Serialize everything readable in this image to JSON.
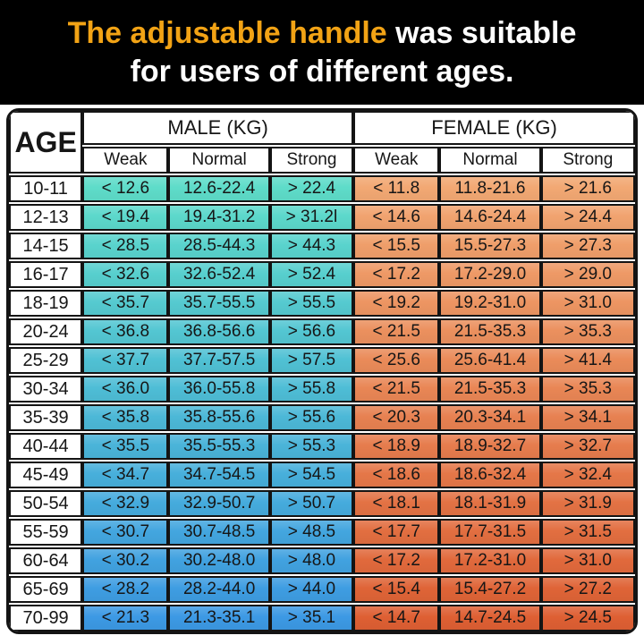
{
  "banner": {
    "highlight": "The adjustable handle",
    "line1_rest": " was suitable",
    "line2": "for users of different ages."
  },
  "chart_data": {
    "type": "table",
    "title": "The adjustable handle was suitable for users of different ages.",
    "column_groups": [
      {
        "label": "MALE (KG)",
        "span": 3
      },
      {
        "label": "FEMALE (KG)",
        "span": 3
      }
    ],
    "columns": [
      "AGE",
      "Weak",
      "Normal",
      "Strong",
      "Weak",
      "Normal",
      "Strong"
    ],
    "rows": [
      [
        "10-11",
        "< 12.6",
        "12.6-22.4",
        "> 22.4",
        "< 11.8",
        "11.8-21.6",
        "> 21.6"
      ],
      [
        "12-13",
        "< 19.4",
        "19.4-31.2",
        "> 31.2l",
        "< 14.6",
        "14.6-24.4",
        "> 24.4"
      ],
      [
        "14-15",
        "< 28.5",
        "28.5-44.3",
        "> 44.3",
        "< 15.5",
        "15.5-27.3",
        "> 27.3"
      ],
      [
        "16-17",
        "< 32.6",
        "32.6-52.4",
        "> 52.4",
        "< 17.2",
        "17.2-29.0",
        "> 29.0"
      ],
      [
        "18-19",
        "< 35.7",
        "35.7-55.5",
        "> 55.5",
        "< 19.2",
        "19.2-31.0",
        "> 31.0"
      ],
      [
        "20-24",
        "< 36.8",
        "36.8-56.6",
        "> 56.6",
        "< 21.5",
        "21.5-35.3",
        "> 35.3"
      ],
      [
        "25-29",
        "< 37.7",
        "37.7-57.5",
        "> 57.5",
        "< 25.6",
        "25.6-41.4",
        "> 41.4"
      ],
      [
        "30-34",
        "< 36.0",
        "36.0-55.8",
        "> 55.8",
        "< 21.5",
        "21.5-35.3",
        "> 35.3"
      ],
      [
        "35-39",
        "< 35.8",
        "35.8-55.6",
        "> 55.6",
        "< 20.3",
        "20.3-34.1",
        "> 34.1"
      ],
      [
        "40-44",
        "< 35.5",
        "35.5-55.3",
        "> 55.3",
        "< 18.9",
        "18.9-32.7",
        "> 32.7"
      ],
      [
        "45-49",
        "< 34.7",
        "34.7-54.5",
        "> 54.5",
        "< 18.6",
        "18.6-32.4",
        "> 32.4"
      ],
      [
        "50-54",
        "< 32.9",
        "32.9-50.7",
        "> 50.7",
        "< 18.1",
        "18.1-31.9",
        "> 31.9"
      ],
      [
        "55-59",
        "< 30.7",
        "30.7-48.5",
        "> 48.5",
        "< 17.7",
        "17.7-31.5",
        "> 31.5"
      ],
      [
        "60-64",
        "< 30.2",
        "30.2-48.0",
        "> 48.0",
        "< 17.2",
        "17.2-31.0",
        "> 31.0"
      ],
      [
        "65-69",
        "< 28.2",
        "28.2-44.0",
        "> 44.0",
        "< 15.4",
        "15.4-27.2",
        "> 27.2"
      ],
      [
        "70-99",
        "< 21.3",
        "21.3-35.1",
        "> 35.1",
        "< 14.7",
        "14.7-24.5",
        "> 24.5"
      ]
    ]
  },
  "colors": {
    "banner_bg": "#000000",
    "banner_highlight": "#F2A315",
    "banner_text": "#FFFFFF",
    "table_border": "#141414",
    "male_gradient_top": "#5EDCC9",
    "male_gradient_bottom": "#3C99E4",
    "female_gradient_top": "#F2A873",
    "female_gradient_bottom": "#DE5F33"
  }
}
